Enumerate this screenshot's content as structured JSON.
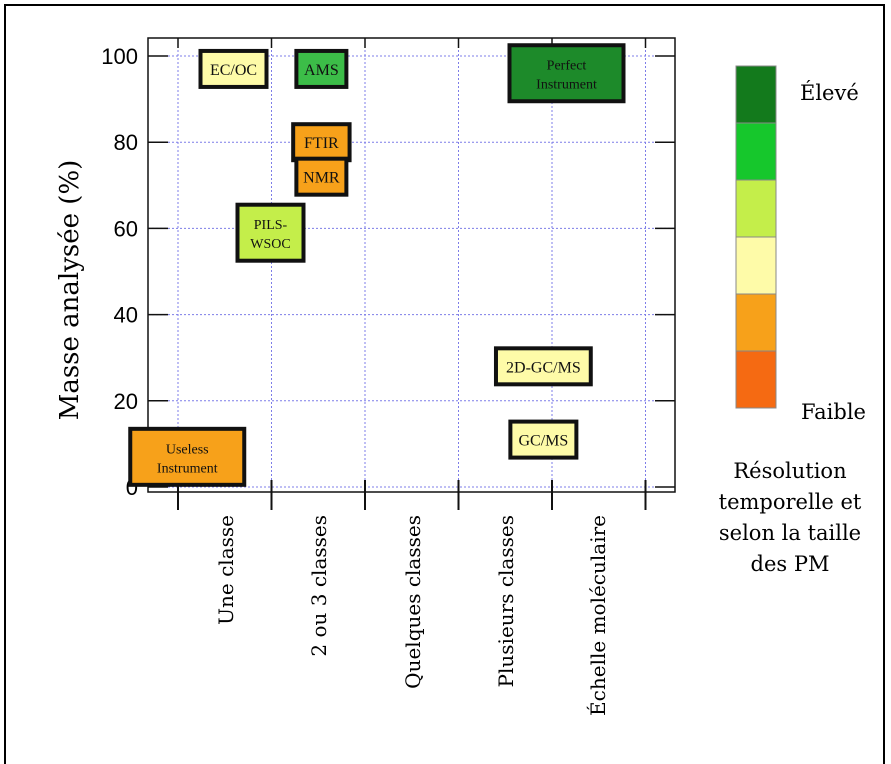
{
  "chart_data": {
    "type": "scatter",
    "ylabel": "Masse analysée (%)",
    "xlabel": "",
    "ylim": [
      0,
      100
    ],
    "yticks": [
      "0",
      "20",
      "40",
      "60",
      "80",
      "100"
    ],
    "categories": [
      "Une classe",
      "2 ou 3 classes",
      "Quelques classes",
      "Plusieurs classes",
      "Échelle moléculaire"
    ],
    "grid": true,
    "points": [
      {
        "label": [
          "EC/OC"
        ],
        "x": 0.6,
        "y": 97,
        "level": 3
      },
      {
        "label": [
          "AMS"
        ],
        "x": 1.55,
        "y": 97,
        "level": 5
      },
      {
        "label": [
          "Perfect",
          "Instrument"
        ],
        "x": 4.2,
        "y": 96,
        "level": 6
      },
      {
        "label": [
          "FTIR"
        ],
        "x": 1.55,
        "y": 80,
        "level": 2
      },
      {
        "label": [
          "NMR"
        ],
        "x": 1.55,
        "y": 72,
        "level": 2
      },
      {
        "label": [
          "PILS-",
          "WSOC"
        ],
        "x": 1.0,
        "y": 59,
        "level": 4
      },
      {
        "label": [
          "2D-GC/MS"
        ],
        "x": 3.95,
        "y": 28,
        "level": 3
      },
      {
        "label": [
          "Useless",
          "Instrument"
        ],
        "x": 0.1,
        "y": 7,
        "level": 2
      },
      {
        "label": [
          "GC/MS"
        ],
        "x": 3.95,
        "y": 11,
        "level": 3
      }
    ],
    "color_scale": {
      "title": [
        "Résolution",
        "temporelle et",
        "selon la taille",
        "des PM"
      ],
      "high_label": "Élevé",
      "low_label": "Faible",
      "colors": [
        "#137a1c",
        "#16c72c",
        "#c4ee4a",
        "#fefba8",
        "#f7a11a",
        "#f56a12"
      ]
    },
    "level_colors": {
      "1": "#f56a12",
      "2": "#f7a11a",
      "3": "#fefba8",
      "4": "#c4ee4a",
      "5": "#3cbd48",
      "6": "#1d8a2a"
    }
  }
}
